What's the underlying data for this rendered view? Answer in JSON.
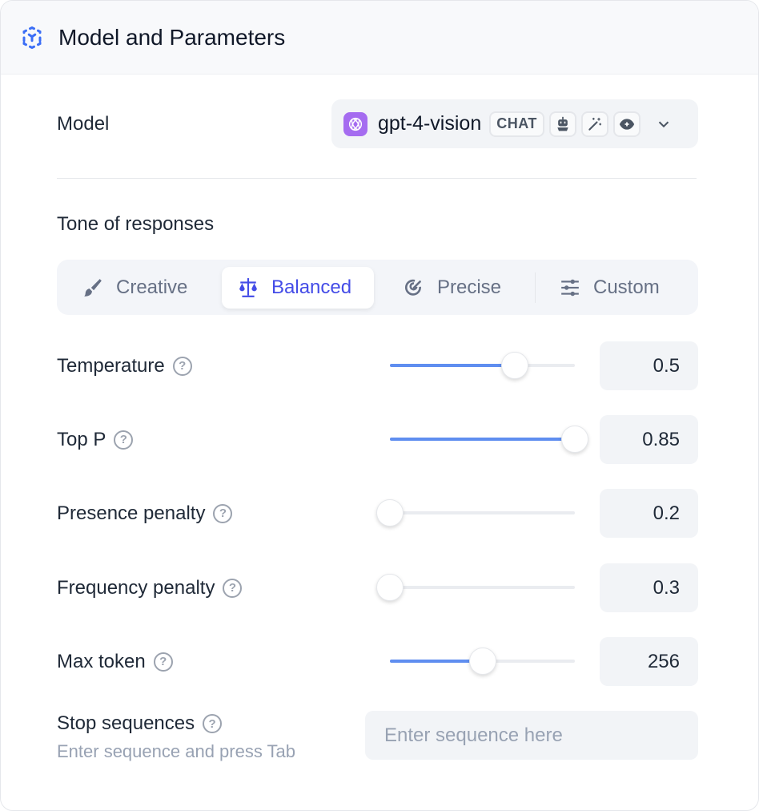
{
  "header": {
    "title": "Model and Parameters",
    "icon": "cube-dashed-icon",
    "accent": "#3b6ef6"
  },
  "model": {
    "label": "Model",
    "name": "gpt-4-vision",
    "mode_badge": "CHAT",
    "feature_icons": [
      "robot-icon",
      "magic-wand-icon",
      "eye-icon"
    ],
    "logo_color": "#a56cf0"
  },
  "tone": {
    "label": "Tone of responses",
    "options": [
      {
        "label": "Creative",
        "icon": "brush-icon"
      },
      {
        "label": "Balanced",
        "icon": "scale-icon",
        "selected": true
      },
      {
        "label": "Precise",
        "icon": "target-icon"
      },
      {
        "label": "Custom",
        "icon": "sliders-icon"
      }
    ],
    "active_color": "#444ce7"
  },
  "params": [
    {
      "label": "Temperature",
      "value": "0.5",
      "slider_percent": 67.5
    },
    {
      "label": "Top P",
      "value": "0.85",
      "slider_percent": 100
    },
    {
      "label": "Presence penalty",
      "value": "0.2",
      "slider_percent": 0
    },
    {
      "label": "Frequency penalty",
      "value": "0.3",
      "slider_percent": 0
    },
    {
      "label": "Max token",
      "value": "256",
      "slider_percent": 50
    }
  ],
  "stop": {
    "label": "Stop sequences",
    "hint": "Enter sequence and press Tab",
    "placeholder": "Enter sequence here"
  }
}
